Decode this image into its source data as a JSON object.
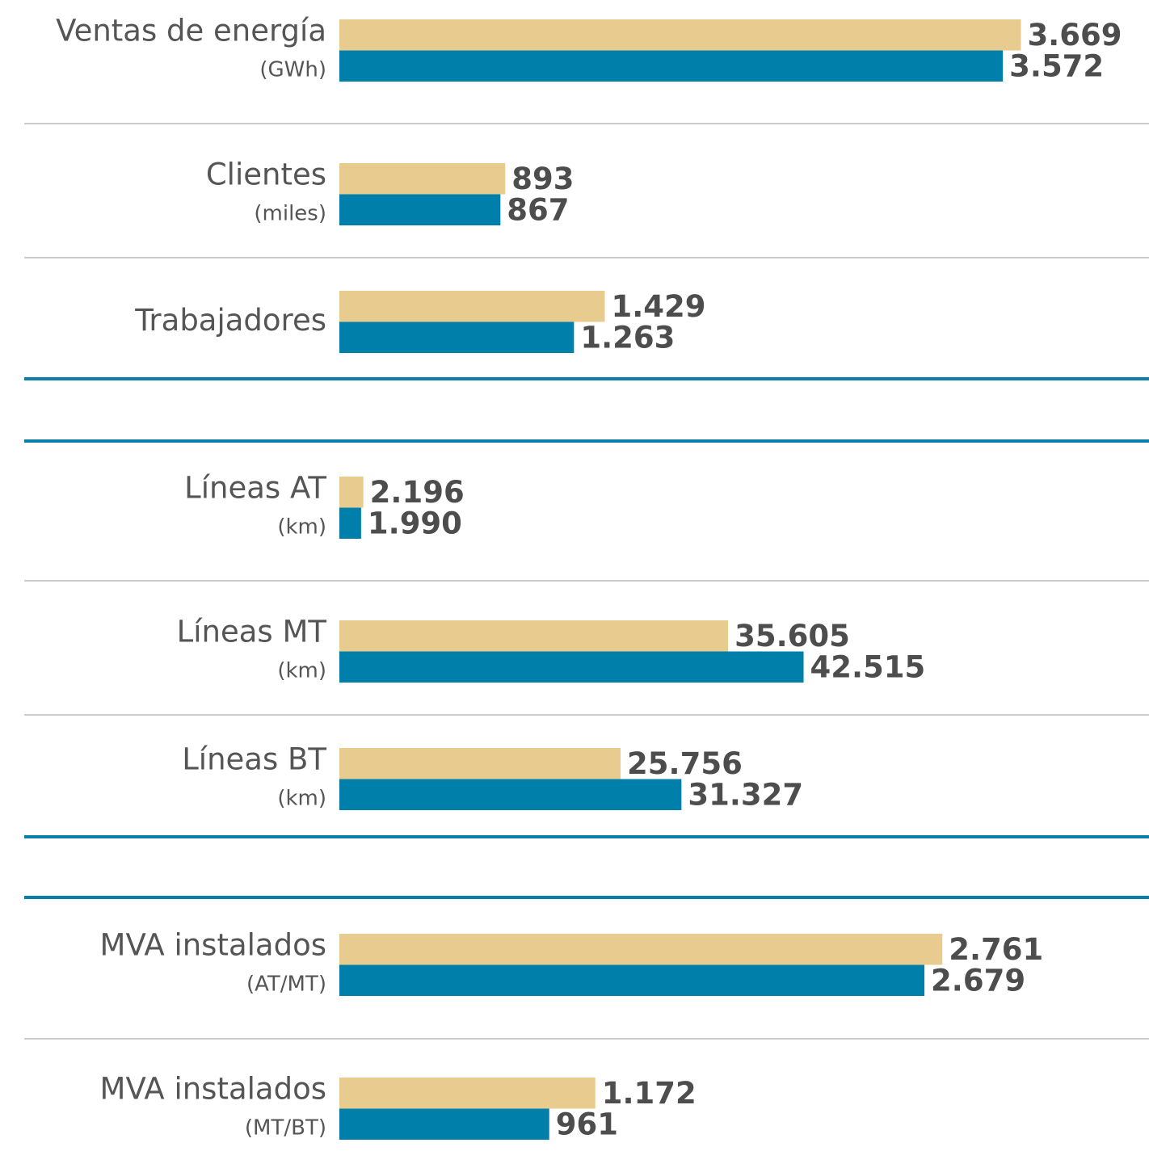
{
  "chart_data": [
    {
      "type": "bar",
      "orientation": "horizontal",
      "categories": [
        "Ventas de energía",
        "Clientes",
        "Trabajadores"
      ],
      "units": [
        "(GWh)",
        "(miles)",
        null
      ],
      "series": [
        {
          "color": "#e8cb8f",
          "values": [
            3669,
            893,
            1429
          ],
          "value_labels": [
            "3.669",
            "893",
            "1.429"
          ]
        },
        {
          "color": "#007fab",
          "values": [
            3572,
            867,
            1263
          ],
          "value_labels": [
            "3.572",
            "867",
            "1.263"
          ]
        }
      ],
      "xlim": [
        0,
        4350
      ]
    },
    {
      "type": "bar",
      "orientation": "horizontal",
      "categories": [
        "Líneas AT",
        "Líneas MT",
        "Líneas BT"
      ],
      "units": [
        "(km)",
        "(km)",
        "(km)"
      ],
      "series": [
        {
          "color": "#e8cb8f",
          "values": [
            2196,
            35605,
            25756
          ],
          "value_labels": [
            "2.196",
            "35.605",
            "25.756"
          ]
        },
        {
          "color": "#007fab",
          "values": [
            1990,
            42515,
            31327
          ],
          "value_labels": [
            "1.990",
            "42.515",
            "31.327"
          ]
        }
      ],
      "xlim": [
        0,
        74000
      ]
    },
    {
      "type": "bar",
      "orientation": "horizontal",
      "categories": [
        "MVA instalados",
        "MVA instalados"
      ],
      "units": [
        "(AT/MT)",
        "(MT/BT)"
      ],
      "series": [
        {
          "color": "#e8cb8f",
          "values": [
            2761,
            1172
          ],
          "value_labels": [
            "2.761",
            "1.172"
          ]
        },
        {
          "color": "#007fab",
          "values": [
            2679,
            961
          ],
          "value_labels": [
            "2.679",
            "961"
          ]
        }
      ],
      "xlim": [
        0,
        3700
      ]
    }
  ]
}
